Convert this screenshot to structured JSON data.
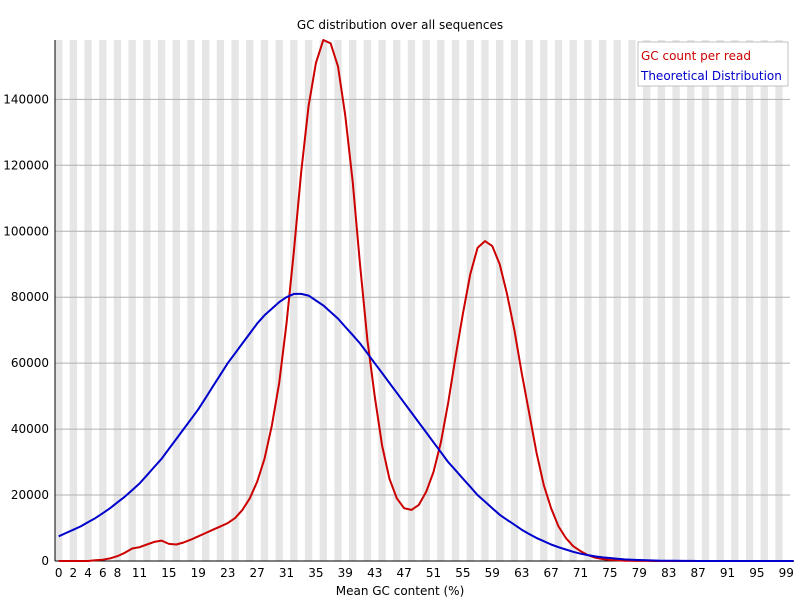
{
  "chart_data": {
    "type": "line",
    "title": "GC distribution over all sequences",
    "xlabel": "Mean GC content (%)",
    "ylabel": "",
    "xlim": [
      0,
      100
    ],
    "ylim": [
      0,
      158000
    ],
    "grid": true,
    "legend_position": "top-right",
    "x_tick_labels": [
      "0",
      "2",
      "4",
      "6",
      "8",
      "11",
      "15",
      "19",
      "23",
      "27",
      "31",
      "35",
      "39",
      "43",
      "47",
      "51",
      "55",
      "59",
      "63",
      "67",
      "71",
      "75",
      "79",
      "83",
      "87",
      "91",
      "95",
      "99"
    ],
    "y_ticks": [
      0,
      20000,
      40000,
      60000,
      80000,
      100000,
      120000,
      140000
    ],
    "series": [
      {
        "name": "GC count per read",
        "color": "#cc0000",
        "x": [
          0,
          1,
          2,
          3,
          4,
          5,
          6,
          7,
          8,
          9,
          10,
          11,
          12,
          13,
          14,
          15,
          16,
          17,
          18,
          19,
          20,
          21,
          22,
          23,
          24,
          25,
          26,
          27,
          28,
          29,
          30,
          31,
          32,
          33,
          34,
          35,
          36,
          37,
          38,
          39,
          40,
          41,
          42,
          43,
          44,
          45,
          46,
          47,
          48,
          49,
          50,
          51,
          52,
          53,
          54,
          55,
          56,
          57,
          58,
          59,
          60,
          61,
          62,
          63,
          64,
          65,
          66,
          67,
          68,
          69,
          70,
          71,
          72,
          73,
          74,
          75,
          76,
          77,
          78,
          79,
          80,
          81,
          82,
          83,
          84,
          85,
          86,
          87,
          88,
          89,
          90,
          91,
          92,
          93,
          94,
          95,
          96,
          97,
          98,
          99,
          100
        ],
        "y": [
          0,
          0,
          0,
          0,
          0,
          200,
          400,
          800,
          1500,
          2500,
          3800,
          4200,
          5000,
          5800,
          6200,
          5200,
          5000,
          5600,
          6500,
          7500,
          8500,
          9500,
          10500,
          11500,
          13000,
          15500,
          19000,
          24000,
          31000,
          41000,
          54000,
          72000,
          94000,
          118000,
          138000,
          151000,
          158000,
          157000,
          150000,
          135000,
          115000,
          90000,
          67000,
          50000,
          35000,
          25000,
          19000,
          16000,
          15500,
          17000,
          21000,
          27000,
          36000,
          48000,
          62000,
          75000,
          87000,
          95000,
          97000,
          95500,
          90000,
          81000,
          70000,
          57000,
          45000,
          33000,
          23000,
          16000,
          10500,
          7000,
          4500,
          3000,
          1800,
          1000,
          600,
          300,
          200,
          100,
          60,
          40,
          20,
          10,
          5,
          0,
          0,
          0,
          0,
          0,
          0,
          0,
          0,
          0,
          0,
          0,
          0,
          0,
          0,
          0,
          0,
          0,
          0
        ]
      },
      {
        "name": "Theoretical Distribution",
        "color": "#0000cc",
        "x": [
          0,
          1,
          2,
          3,
          4,
          5,
          6,
          7,
          8,
          9,
          10,
          11,
          12,
          13,
          14,
          15,
          16,
          17,
          18,
          19,
          20,
          21,
          22,
          23,
          24,
          25,
          26,
          27,
          28,
          29,
          30,
          31,
          32,
          33,
          34,
          35,
          36,
          37,
          38,
          39,
          40,
          41,
          42,
          43,
          44,
          45,
          46,
          47,
          48,
          49,
          50,
          51,
          52,
          53,
          54,
          55,
          56,
          57,
          58,
          59,
          60,
          61,
          62,
          63,
          64,
          65,
          66,
          67,
          68,
          69,
          70,
          71,
          72,
          73,
          74,
          75,
          76,
          77,
          78,
          79,
          80,
          81,
          82,
          83,
          84,
          85,
          86,
          87,
          88,
          89,
          90,
          91,
          92,
          93,
          94,
          95,
          96,
          97,
          98,
          99,
          100
        ],
        "y": [
          7500,
          8500,
          9500,
          10500,
          11800,
          13000,
          14500,
          16000,
          17800,
          19500,
          21500,
          23500,
          26000,
          28500,
          31000,
          34000,
          37000,
          40000,
          43000,
          46000,
          49500,
          53000,
          56500,
          60000,
          63000,
          66000,
          69000,
          72000,
          74500,
          76500,
          78500,
          80000,
          81000,
          81000,
          80500,
          79000,
          77500,
          75500,
          73500,
          71000,
          68500,
          66000,
          63000,
          60000,
          57000,
          54000,
          51000,
          48000,
          45000,
          42000,
          39000,
          36000,
          33000,
          30000,
          27500,
          25000,
          22500,
          20000,
          18000,
          16000,
          14000,
          12500,
          11000,
          9500,
          8200,
          7000,
          6000,
          5000,
          4200,
          3500,
          2800,
          2200,
          1800,
          1400,
          1100,
          900,
          700,
          500,
          400,
          300,
          200,
          150,
          100,
          80,
          60,
          40,
          20,
          10,
          0,
          0,
          0,
          0,
          0,
          0,
          0,
          0,
          0,
          0,
          0,
          0,
          0
        ]
      }
    ]
  }
}
